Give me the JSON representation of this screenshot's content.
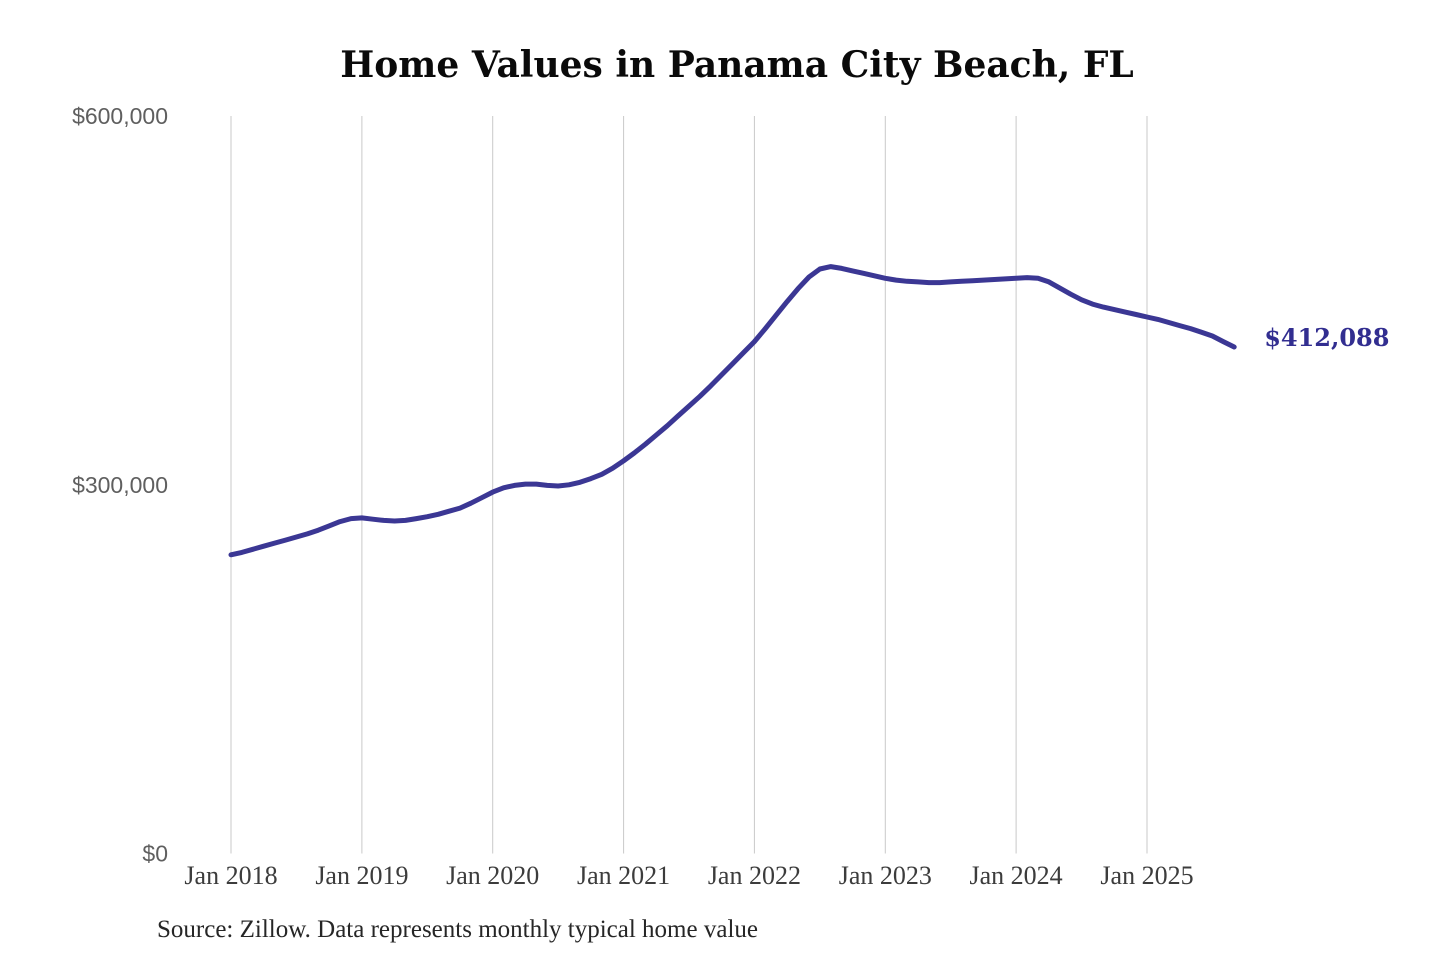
{
  "title": "Home Values in Panama City Beach, FL",
  "footer": {
    "source": "Source: Zillow. Data represents monthly typical home value"
  },
  "chart_data": {
    "type": "line",
    "title": "Home Values in Panama City Beach, FL",
    "source": "Source: Zillow. Data represents monthly typical home value",
    "series_name": "Monthly typical home value",
    "end_label": "$412,088",
    "last_value": 412088,
    "ylim": [
      0,
      600000
    ],
    "grid": "vertical-only",
    "legend": "none",
    "line_color": "#3b3794",
    "end_label_color": "#322e90",
    "grid_color": "#c9c9c9",
    "ytick_color": "#5f5f5f",
    "xtick_color": "#3c3c3c",
    "y_ticks": [
      {
        "value": 0,
        "label": "$0"
      },
      {
        "value": 300000,
        "label": "$300,000"
      },
      {
        "value": 600000,
        "label": "$600,000"
      }
    ],
    "x_ticks": [
      "Jan 2018",
      "Jan 2019",
      "Jan 2020",
      "Jan 2021",
      "Jan 2022",
      "Jan 2023",
      "Jan 2024",
      "Jan 2025"
    ],
    "x": [
      "Jan 2018",
      "Feb 2018",
      "Mar 2018",
      "Apr 2018",
      "May 2018",
      "Jun 2018",
      "Jul 2018",
      "Aug 2018",
      "Sep 2018",
      "Oct 2018",
      "Nov 2018",
      "Dec 2018",
      "Jan 2019",
      "Feb 2019",
      "Mar 2019",
      "Apr 2019",
      "May 2019",
      "Jun 2019",
      "Jul 2019",
      "Aug 2019",
      "Sep 2019",
      "Oct 2019",
      "Nov 2019",
      "Dec 2019",
      "Jan 2020",
      "Feb 2020",
      "Mar 2020",
      "Apr 2020",
      "May 2020",
      "Jun 2020",
      "Jul 2020",
      "Aug 2020",
      "Sep 2020",
      "Oct 2020",
      "Nov 2020",
      "Dec 2020",
      "Jan 2021",
      "Feb 2021",
      "Mar 2021",
      "Apr 2021",
      "May 2021",
      "Jun 2021",
      "Jul 2021",
      "Aug 2021",
      "Sep 2021",
      "Oct 2021",
      "Nov 2021",
      "Dec 2021",
      "Jan 2022",
      "Feb 2022",
      "Mar 2022",
      "Apr 2022",
      "May 2022",
      "Jun 2022",
      "Jul 2022",
      "Aug 2022",
      "Sep 2022",
      "Oct 2022",
      "Nov 2022",
      "Dec 2022",
      "Jan 2023",
      "Feb 2023",
      "Mar 2023",
      "Apr 2023",
      "May 2023",
      "Jun 2023",
      "Jul 2023",
      "Aug 2023",
      "Sep 2023",
      "Oct 2023",
      "Nov 2023",
      "Dec 2023",
      "Jan 2024",
      "Feb 2024",
      "Mar 2024",
      "Apr 2024",
      "May 2024",
      "Jun 2024",
      "Jul 2024",
      "Aug 2024",
      "Sep 2024",
      "Oct 2024",
      "Nov 2024",
      "Dec 2024",
      "Jan 2025",
      "Feb 2025",
      "Mar 2025",
      "Apr 2025",
      "May 2025",
      "Jun 2025",
      "Jul 2025",
      "Aug 2025",
      "Sep 2025"
    ],
    "values": [
      243000,
      245000,
      247500,
      250000,
      252500,
      255000,
      257500,
      260000,
      263000,
      266500,
      270000,
      272500,
      273000,
      272000,
      271000,
      270500,
      271000,
      272500,
      274000,
      276000,
      278500,
      281000,
      285000,
      289500,
      294000,
      297500,
      299500,
      300500,
      300500,
      299500,
      299000,
      300000,
      302000,
      305000,
      308500,
      313500,
      319500,
      326000,
      333000,
      340500,
      348000,
      356000,
      364000,
      372000,
      380500,
      389500,
      398500,
      407500,
      416500,
      427000,
      438000,
      449000,
      459500,
      469000,
      475500,
      477500,
      476000,
      474000,
      472000,
      470000,
      468000,
      466500,
      465500,
      465000,
      464500,
      464500,
      465000,
      465500,
      466000,
      466500,
      467000,
      467500,
      468000,
      468500,
      468000,
      465000,
      460000,
      455000,
      450500,
      447000,
      444500,
      442500,
      440500,
      438500,
      436500,
      434500,
      432000,
      429500,
      427000,
      424000,
      421000,
      416500,
      412088
    ]
  }
}
